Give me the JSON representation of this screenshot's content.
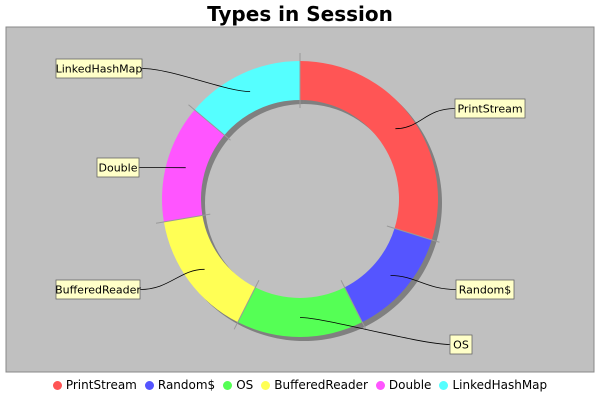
{
  "chart_data": {
    "type": "pie",
    "title": "Types in Session",
    "style": "donut",
    "categories": [
      "PrintStream",
      "Random$",
      "OS",
      "BufferedReader",
      "Double",
      "LinkedHashMap"
    ],
    "values": [
      28,
      12,
      14,
      14,
      13,
      13
    ],
    "colors": [
      "#ff5555",
      "#5555ff",
      "#55ff55",
      "#ffff55",
      "#ff55ff",
      "#55ffff"
    ],
    "legend_position": "bottom",
    "plot_background": "#c0c0c0"
  }
}
